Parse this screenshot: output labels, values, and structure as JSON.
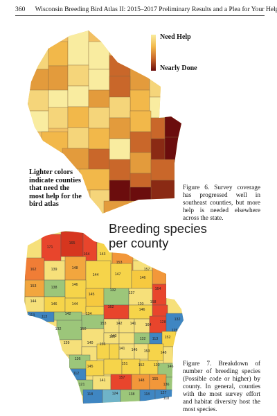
{
  "header": {
    "page_number": "360",
    "running_title": "Wisconsin Breeding Bird Atlas II: 2015–2017 Preliminary Results and a Plea for Your Help"
  },
  "figure6": {
    "legend_top": "Need Help",
    "legend_bottom": "Nearly Done",
    "side_note": "Lighter colors indicate counties that need the most help for the bird atlas",
    "caption": "Figure 6. Survey coverage has progressed well in southeast counties, but more help is needed elsewhere across the state.",
    "colors": {
      "lightest": "#f9eca0",
      "light": "#f5d57a",
      "mid": "#f2b84a",
      "orange": "#e39b3c",
      "brown": "#c9672a",
      "dark": "#8a2a14",
      "darkest": "#6b0d0d"
    }
  },
  "figure7": {
    "title_line1": "Breeding species",
    "title_line2": "per county",
    "caption": "Figure 7. Breakdown of number of breeding species (Possible code or higher) by county. In general, counties with the most survey effort and habitat diversity host the most species.",
    "counties": [
      {
        "value": "171"
      },
      {
        "value": "165"
      },
      {
        "value": "164"
      },
      {
        "value": "143"
      },
      {
        "value": "153"
      },
      {
        "value": "157"
      },
      {
        "value": "162"
      },
      {
        "value": "139"
      },
      {
        "value": "148"
      },
      {
        "value": "144"
      },
      {
        "value": "147"
      },
      {
        "value": "146"
      },
      {
        "value": "164"
      },
      {
        "value": "153"
      },
      {
        "value": "138"
      },
      {
        "value": "146"
      },
      {
        "value": "132"
      },
      {
        "value": "137"
      },
      {
        "value": "120"
      },
      {
        "value": "158"
      },
      {
        "value": "145"
      },
      {
        "value": "144"
      },
      {
        "value": "146"
      },
      {
        "value": "144"
      },
      {
        "value": "162"
      },
      {
        "value": "146"
      },
      {
        "value": "113"
      },
      {
        "value": "113"
      },
      {
        "value": "142"
      },
      {
        "value": "134"
      },
      {
        "value": "153"
      },
      {
        "value": "142"
      },
      {
        "value": "141"
      },
      {
        "value": "164"
      },
      {
        "value": "128"
      },
      {
        "value": "132"
      },
      {
        "value": "132"
      },
      {
        "value": "150"
      },
      {
        "value": "138"
      },
      {
        "value": "125"
      },
      {
        "value": "139"
      },
      {
        "value": "140"
      },
      {
        "value": "156"
      },
      {
        "value": "143"
      },
      {
        "value": "132"
      },
      {
        "value": "113"
      },
      {
        "value": "152"
      },
      {
        "value": "141"
      },
      {
        "value": "146"
      },
      {
        "value": "153"
      },
      {
        "value": "148"
      },
      {
        "value": "136"
      },
      {
        "value": "112"
      },
      {
        "value": "145"
      },
      {
        "value": "151"
      },
      {
        "value": "152"
      },
      {
        "value": "120"
      },
      {
        "value": "146"
      },
      {
        "value": "121"
      },
      {
        "value": "141"
      },
      {
        "value": "157"
      },
      {
        "value": "148"
      },
      {
        "value": "155"
      },
      {
        "value": "136"
      },
      {
        "value": "127"
      },
      {
        "value": "118"
      },
      {
        "value": "124"
      },
      {
        "value": "138"
      },
      {
        "value": "118"
      },
      {
        "value": "118"
      }
    ]
  }
}
